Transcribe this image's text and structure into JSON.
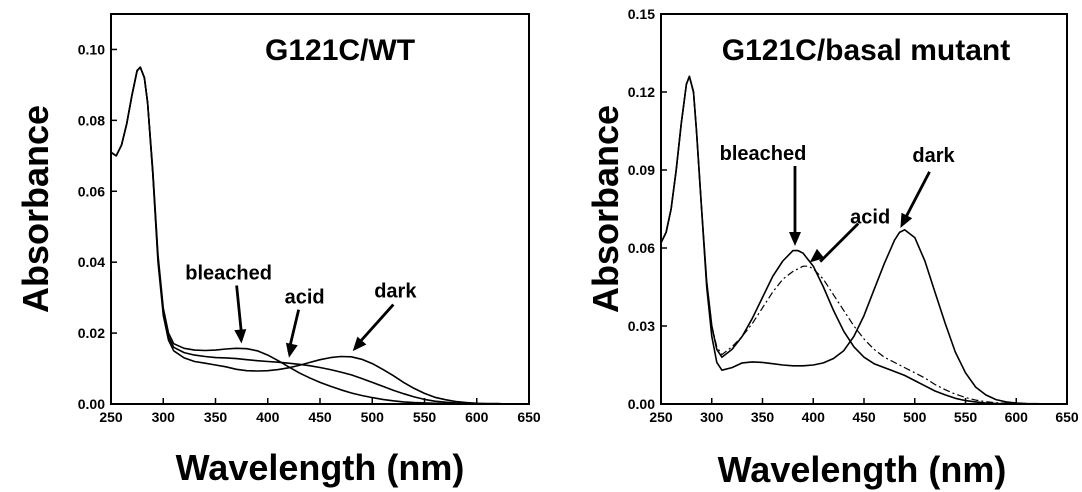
{
  "chart_data": [
    {
      "type": "line",
      "title": "G121C/WT",
      "xlabel": "Wavelength (nm)",
      "ylabel": "Absorbance",
      "xlim": [
        250,
        650
      ],
      "ylim": [
        0,
        0.11
      ],
      "x_ticks": [
        "250",
        "300",
        "350",
        "400",
        "450",
        "500",
        "550",
        "600",
        "650"
      ],
      "y_ticks": [
        "0.00",
        "0.02",
        "0.04",
        "0.06",
        "0.08",
        "0.10"
      ],
      "series": [
        {
          "name": "dark",
          "style": "solid",
          "x": [
            250,
            255,
            260,
            265,
            270,
            275,
            278,
            282,
            285,
            290,
            295,
            300,
            305,
            310,
            320,
            330,
            340,
            350,
            360,
            370,
            380,
            390,
            400,
            410,
            420,
            430,
            440,
            450,
            460,
            470,
            480,
            490,
            500,
            510,
            520,
            530,
            540,
            550,
            560,
            570,
            580,
            590,
            600,
            610,
            620,
            630,
            640,
            650
          ],
          "y": [
            0.071,
            0.07,
            0.073,
            0.079,
            0.087,
            0.094,
            0.095,
            0.092,
            0.085,
            0.065,
            0.04,
            0.025,
            0.018,
            0.015,
            0.013,
            0.012,
            0.0115,
            0.011,
            0.0105,
            0.0098,
            0.0094,
            0.0093,
            0.0094,
            0.0097,
            0.0102,
            0.0109,
            0.0117,
            0.0125,
            0.0131,
            0.0134,
            0.0133,
            0.0126,
            0.0114,
            0.0098,
            0.008,
            0.0061,
            0.0044,
            0.003,
            0.0019,
            0.0012,
            0.0007,
            0.0004,
            0.0002,
            0.0001,
            0.0001,
            0,
            0,
            0
          ]
        },
        {
          "name": "bleached",
          "style": "solid",
          "x": [
            250,
            255,
            260,
            265,
            270,
            275,
            278,
            282,
            285,
            290,
            295,
            300,
            305,
            310,
            320,
            330,
            340,
            350,
            360,
            370,
            380,
            390,
            400,
            410,
            420,
            430,
            440,
            450,
            460,
            470,
            480,
            490,
            500,
            510,
            520,
            530,
            540,
            550,
            560,
            570,
            580,
            590,
            600,
            610,
            620,
            630,
            640,
            650
          ],
          "y": [
            0.071,
            0.07,
            0.073,
            0.079,
            0.087,
            0.094,
            0.095,
            0.092,
            0.085,
            0.066,
            0.042,
            0.027,
            0.02,
            0.017,
            0.0157,
            0.0152,
            0.0151,
            0.0152,
            0.0155,
            0.0157,
            0.0156,
            0.015,
            0.0138,
            0.0122,
            0.0105,
            0.0088,
            0.0074,
            0.0061,
            0.005,
            0.004,
            0.0031,
            0.0024,
            0.0018,
            0.0013,
            0.0009,
            0.0006,
            0.0004,
            0.0003,
            0.0002,
            0.0001,
            0.0001,
            0,
            0,
            0,
            0,
            0,
            0,
            0
          ]
        },
        {
          "name": "acid",
          "style": "solid",
          "x": [
            250,
            255,
            260,
            265,
            270,
            275,
            278,
            282,
            285,
            290,
            295,
            300,
            305,
            310,
            320,
            330,
            340,
            350,
            360,
            370,
            380,
            390,
            400,
            410,
            420,
            430,
            440,
            450,
            460,
            470,
            480,
            490,
            500,
            510,
            520,
            530,
            540,
            550,
            560,
            570,
            580,
            590,
            600,
            610,
            620,
            630,
            640,
            650
          ],
          "y": [
            0.071,
            0.07,
            0.073,
            0.079,
            0.087,
            0.094,
            0.095,
            0.092,
            0.085,
            0.065,
            0.041,
            0.026,
            0.019,
            0.016,
            0.0145,
            0.0138,
            0.0134,
            0.0131,
            0.013,
            0.0128,
            0.0125,
            0.0122,
            0.012,
            0.0118,
            0.0115,
            0.0112,
            0.0108,
            0.0103,
            0.0097,
            0.009,
            0.0082,
            0.0072,
            0.0061,
            0.005,
            0.0039,
            0.0029,
            0.002,
            0.0013,
            0.0008,
            0.0005,
            0.0003,
            0.0002,
            0.0001,
            0,
            0,
            0,
            0,
            0
          ]
        }
      ],
      "annotations": [
        {
          "text": "bleached",
          "x": 375,
          "y": 0.0165
        },
        {
          "text": "acid",
          "x": 420,
          "y": 0.0125
        },
        {
          "text": "dark",
          "x": 480,
          "y": 0.0145
        }
      ]
    },
    {
      "type": "line",
      "title": "G121C/basal mutant",
      "xlabel": "Wavelength (nm)",
      "ylabel": "Absorbance",
      "xlim": [
        250,
        650
      ],
      "ylim": [
        0,
        0.15
      ],
      "x_ticks": [
        "250",
        "300",
        "350",
        "400",
        "450",
        "500",
        "550",
        "600",
        "650"
      ],
      "y_ticks": [
        "0.00",
        "0.03",
        "0.06",
        "0.09",
        "0.12",
        "0.15"
      ],
      "series": [
        {
          "name": "dark",
          "style": "solid",
          "x": [
            250,
            255,
            260,
            265,
            270,
            275,
            278,
            282,
            285,
            290,
            295,
            300,
            305,
            310,
            320,
            330,
            340,
            350,
            360,
            370,
            380,
            390,
            400,
            410,
            420,
            430,
            440,
            450,
            460,
            470,
            480,
            485,
            490,
            500,
            510,
            520,
            530,
            540,
            550,
            560,
            570,
            580,
            590,
            600,
            610,
            620,
            630,
            640,
            650
          ],
          "y": [
            0.062,
            0.066,
            0.075,
            0.09,
            0.108,
            0.123,
            0.126,
            0.12,
            0.105,
            0.075,
            0.045,
            0.026,
            0.016,
            0.013,
            0.014,
            0.0158,
            0.0162,
            0.016,
            0.0155,
            0.015,
            0.0147,
            0.0147,
            0.015,
            0.0158,
            0.0175,
            0.0205,
            0.026,
            0.034,
            0.044,
            0.054,
            0.063,
            0.066,
            0.067,
            0.064,
            0.055,
            0.043,
            0.031,
            0.02,
            0.012,
            0.0065,
            0.0035,
            0.0017,
            0.0008,
            0.0004,
            0.0002,
            0.0001,
            0,
            0,
            0
          ]
        },
        {
          "name": "bleached",
          "style": "solid",
          "x": [
            250,
            255,
            260,
            265,
            270,
            275,
            278,
            282,
            285,
            290,
            295,
            300,
            305,
            310,
            320,
            330,
            340,
            350,
            360,
            370,
            380,
            385,
            390,
            400,
            410,
            420,
            430,
            440,
            450,
            460,
            470,
            480,
            490,
            500,
            510,
            520,
            530,
            540,
            550,
            560,
            570,
            580,
            590,
            600,
            610,
            620,
            630,
            640,
            650
          ],
          "y": [
            0.062,
            0.066,
            0.075,
            0.09,
            0.108,
            0.123,
            0.126,
            0.12,
            0.105,
            0.075,
            0.047,
            0.03,
            0.021,
            0.018,
            0.021,
            0.026,
            0.033,
            0.041,
            0.049,
            0.055,
            0.059,
            0.059,
            0.058,
            0.053,
            0.045,
            0.036,
            0.028,
            0.022,
            0.018,
            0.0155,
            0.014,
            0.0125,
            0.011,
            0.009,
            0.007,
            0.005,
            0.0035,
            0.0022,
            0.0013,
            0.0008,
            0.0004,
            0.0002,
            0.0001,
            0,
            0,
            0,
            0,
            0,
            0
          ]
        },
        {
          "name": "acid",
          "style": "dash-dot",
          "x": [
            250,
            255,
            260,
            265,
            270,
            275,
            278,
            282,
            285,
            290,
            295,
            300,
            305,
            310,
            320,
            330,
            340,
            350,
            360,
            370,
            380,
            390,
            395,
            400,
            410,
            420,
            430,
            440,
            450,
            460,
            470,
            480,
            490,
            500,
            510,
            520,
            530,
            540,
            550,
            560,
            570,
            580,
            590,
            600,
            610,
            620,
            630,
            640,
            650
          ],
          "y": [
            0.062,
            0.066,
            0.075,
            0.09,
            0.108,
            0.123,
            0.126,
            0.12,
            0.105,
            0.075,
            0.047,
            0.03,
            0.022,
            0.019,
            0.022,
            0.026,
            0.031,
            0.037,
            0.043,
            0.048,
            0.051,
            0.053,
            0.053,
            0.052,
            0.048,
            0.042,
            0.036,
            0.03,
            0.025,
            0.021,
            0.018,
            0.016,
            0.014,
            0.012,
            0.01,
            0.0075,
            0.0055,
            0.0038,
            0.0025,
            0.0015,
            0.0009,
            0.0005,
            0.0003,
            0.0002,
            0.0001,
            0,
            0,
            0,
            0
          ]
        }
      ],
      "annotations": [
        {
          "text": "bleached",
          "x": 382,
          "y": 0.06
        },
        {
          "text": "acid",
          "x": 395,
          "y": 0.054
        },
        {
          "text": "dark",
          "x": 485,
          "y": 0.067
        }
      ]
    }
  ]
}
